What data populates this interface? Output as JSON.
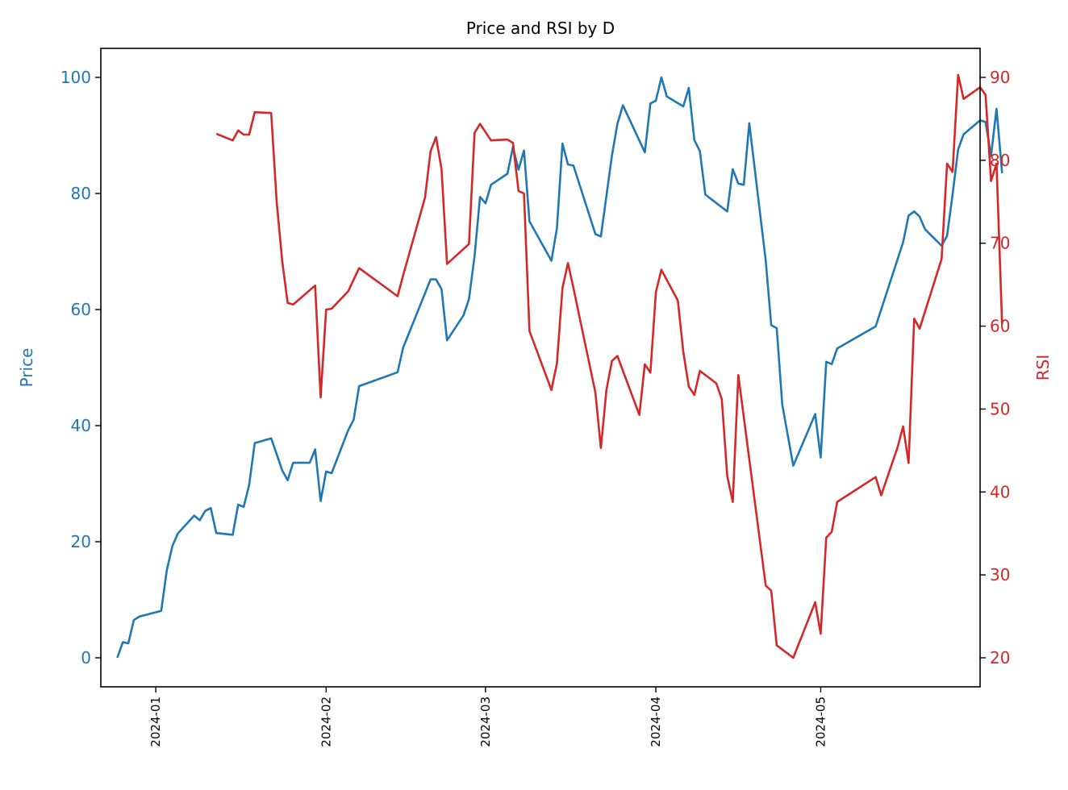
{
  "chart_data": {
    "type": "line",
    "title": "Price and RSI by D",
    "xlabel": "",
    "x_ticks": [
      "2024-01",
      "2024-02",
      "2024-03",
      "2024-04",
      "2024-05"
    ],
    "xlim": [
      "2023-12-22",
      "2024-05-30"
    ],
    "grid": false,
    "y_left": {
      "label": "Price",
      "color": "#1f77b4",
      "lim": [
        -5,
        105
      ],
      "ticks": [
        0,
        20,
        40,
        60,
        80,
        100
      ]
    },
    "y_right": {
      "label": "RSI",
      "color": "#d62728",
      "lim": [
        16.5,
        93.5
      ],
      "ticks": [
        20,
        30,
        40,
        50,
        60,
        70,
        80,
        90
      ]
    },
    "series": [
      {
        "name": "Price",
        "axis": "left",
        "color": "#1f77b4",
        "points": [
          [
            "2023-12-25",
            0.0
          ],
          [
            "2023-12-26",
            2.7
          ],
          [
            "2023-12-27",
            2.5
          ],
          [
            "2023-12-28",
            6.5
          ],
          [
            "2023-12-29",
            7.1
          ],
          [
            "2024-01-02",
            8.1
          ],
          [
            "2024-01-03",
            15.1
          ],
          [
            "2024-01-04",
            19.2
          ],
          [
            "2024-01-05",
            21.4
          ],
          [
            "2024-01-08",
            24.5
          ],
          [
            "2024-01-09",
            23.7
          ],
          [
            "2024-01-10",
            25.3
          ],
          [
            "2024-01-11",
            25.8
          ],
          [
            "2024-01-12",
            21.5
          ],
          [
            "2024-01-15",
            21.2
          ],
          [
            "2024-01-16",
            26.4
          ],
          [
            "2024-01-17",
            26.0
          ],
          [
            "2024-01-18",
            29.8
          ],
          [
            "2024-01-19",
            37.0
          ],
          [
            "2024-01-22",
            37.8
          ],
          [
            "2024-01-23",
            35.1
          ],
          [
            "2024-01-24",
            32.3
          ],
          [
            "2024-01-25",
            30.6
          ],
          [
            "2024-01-26",
            33.6
          ],
          [
            "2024-01-29",
            33.6
          ],
          [
            "2024-01-30",
            35.9
          ],
          [
            "2024-01-31",
            27.0
          ],
          [
            "2024-02-01",
            32.1
          ],
          [
            "2024-02-02",
            31.8
          ],
          [
            "2024-02-05",
            39.2
          ],
          [
            "2024-02-06",
            41.0
          ],
          [
            "2024-02-07",
            46.8
          ],
          [
            "2024-02-14",
            49.2
          ],
          [
            "2024-02-15",
            53.4
          ],
          [
            "2024-02-20",
            65.2
          ],
          [
            "2024-02-21",
            65.2
          ],
          [
            "2024-02-22",
            63.5
          ],
          [
            "2024-02-23",
            54.7
          ],
          [
            "2024-02-26",
            59.0
          ],
          [
            "2024-02-27",
            61.8
          ],
          [
            "2024-02-28",
            69.2
          ],
          [
            "2024-02-29",
            79.4
          ],
          [
            "2024-03-01",
            78.3
          ],
          [
            "2024-03-02",
            81.5
          ],
          [
            "2024-03-05",
            83.4
          ],
          [
            "2024-03-06",
            88.0
          ],
          [
            "2024-03-07",
            84.1
          ],
          [
            "2024-03-08",
            87.4
          ],
          [
            "2024-03-09",
            75.2
          ],
          [
            "2024-03-13",
            68.4
          ],
          [
            "2024-03-14",
            74.0
          ],
          [
            "2024-03-15",
            88.6
          ],
          [
            "2024-03-16",
            85.0
          ],
          [
            "2024-03-17",
            84.8
          ],
          [
            "2024-03-21",
            73.0
          ],
          [
            "2024-03-22",
            72.6
          ],
          [
            "2024-03-24",
            86.5
          ],
          [
            "2024-03-25",
            92.0
          ],
          [
            "2024-03-26",
            95.2
          ],
          [
            "2024-03-30",
            87.1
          ],
          [
            "2024-03-31",
            95.5
          ],
          [
            "2024-04-01",
            96.0
          ],
          [
            "2024-04-02",
            100.0
          ],
          [
            "2024-04-03",
            96.7
          ],
          [
            "2024-04-06",
            95.0
          ],
          [
            "2024-04-07",
            98.2
          ],
          [
            "2024-04-08",
            89.2
          ],
          [
            "2024-04-09",
            87.3
          ],
          [
            "2024-04-10",
            79.8
          ],
          [
            "2024-04-14",
            76.9
          ],
          [
            "2024-04-15",
            84.2
          ],
          [
            "2024-04-16",
            81.7
          ],
          [
            "2024-04-17",
            81.5
          ],
          [
            "2024-04-18",
            92.1
          ],
          [
            "2024-04-21",
            68.4
          ],
          [
            "2024-04-22",
            57.3
          ],
          [
            "2024-04-23",
            56.8
          ],
          [
            "2024-04-24",
            43.6
          ],
          [
            "2024-04-26",
            33.1
          ],
          [
            "2024-04-30",
            42.0
          ],
          [
            "2024-05-01",
            34.5
          ],
          [
            "2024-05-02",
            51.0
          ],
          [
            "2024-05-03",
            50.6
          ],
          [
            "2024-05-04",
            53.3
          ],
          [
            "2024-05-11",
            57.1
          ],
          [
            "2024-05-12",
            60.0
          ],
          [
            "2024-05-16",
            71.6
          ],
          [
            "2024-05-17",
            76.2
          ],
          [
            "2024-05-18",
            76.9
          ],
          [
            "2024-05-19",
            76.0
          ],
          [
            "2024-05-20",
            73.8
          ],
          [
            "2024-05-23",
            71.0
          ],
          [
            "2024-05-24",
            72.7
          ],
          [
            "2024-05-25",
            79.8
          ],
          [
            "2024-05-26",
            87.6
          ],
          [
            "2024-05-27",
            90.2
          ],
          [
            "2024-05-30",
            92.6
          ],
          [
            "2024-05-31",
            92.3
          ],
          [
            "2024-06-01",
            86.5
          ],
          [
            "2024-06-02",
            94.6
          ],
          [
            "2024-06-03",
            83.5
          ]
        ]
      },
      {
        "name": "RSI",
        "axis": "right",
        "color": "#d62728",
        "points": [
          [
            "2024-01-12",
            83.2
          ],
          [
            "2024-01-15",
            82.4
          ],
          [
            "2024-01-16",
            83.6
          ],
          [
            "2024-01-17",
            83.1
          ],
          [
            "2024-01-18",
            83.1
          ],
          [
            "2024-01-19",
            85.8
          ],
          [
            "2024-01-22",
            85.7
          ],
          [
            "2024-01-23",
            75.0
          ],
          [
            "2024-01-24",
            67.9
          ],
          [
            "2024-01-25",
            62.8
          ],
          [
            "2024-01-26",
            62.6
          ],
          [
            "2024-01-30",
            64.9
          ],
          [
            "2024-01-31",
            51.4
          ],
          [
            "2024-02-01",
            62.0
          ],
          [
            "2024-02-02",
            62.1
          ],
          [
            "2024-02-05",
            64.2
          ],
          [
            "2024-02-07",
            67.0
          ],
          [
            "2024-02-14",
            63.6
          ],
          [
            "2024-02-15",
            66.1
          ],
          [
            "2024-02-19",
            75.5
          ],
          [
            "2024-02-20",
            81.1
          ],
          [
            "2024-02-21",
            82.8
          ],
          [
            "2024-02-22",
            78.9
          ],
          [
            "2024-02-23",
            67.5
          ],
          [
            "2024-02-27",
            69.9
          ],
          [
            "2024-02-28",
            83.3
          ],
          [
            "2024-02-29",
            84.4
          ],
          [
            "2024-03-02",
            82.4
          ],
          [
            "2024-03-05",
            82.5
          ],
          [
            "2024-03-06",
            82.1
          ],
          [
            "2024-03-07",
            76.3
          ],
          [
            "2024-03-08",
            76.0
          ],
          [
            "2024-03-09",
            59.4
          ],
          [
            "2024-03-13",
            52.3
          ],
          [
            "2024-03-14",
            55.5
          ],
          [
            "2024-03-15",
            64.6
          ],
          [
            "2024-03-16",
            67.6
          ],
          [
            "2024-03-17",
            64.6
          ],
          [
            "2024-03-21",
            52.0
          ],
          [
            "2024-03-22",
            45.3
          ],
          [
            "2024-03-23",
            52.3
          ],
          [
            "2024-03-24",
            55.8
          ],
          [
            "2024-03-25",
            56.4
          ],
          [
            "2024-03-29",
            49.3
          ],
          [
            "2024-03-30",
            55.4
          ],
          [
            "2024-03-31",
            54.4
          ],
          [
            "2024-04-01",
            64.1
          ],
          [
            "2024-04-02",
            66.8
          ],
          [
            "2024-04-05",
            63.1
          ],
          [
            "2024-04-06",
            56.9
          ],
          [
            "2024-04-07",
            52.7
          ],
          [
            "2024-04-08",
            51.7
          ],
          [
            "2024-04-09",
            54.6
          ],
          [
            "2024-04-12",
            53.1
          ],
          [
            "2024-04-13",
            51.2
          ],
          [
            "2024-04-14",
            41.9
          ],
          [
            "2024-04-15",
            38.8
          ],
          [
            "2024-04-16",
            54.1
          ],
          [
            "2024-04-21",
            28.7
          ],
          [
            "2024-04-22",
            28.1
          ],
          [
            "2024-04-23",
            21.5
          ],
          [
            "2024-04-26",
            20.0
          ],
          [
            "2024-04-30",
            26.7
          ],
          [
            "2024-05-01",
            22.9
          ],
          [
            "2024-05-02",
            34.5
          ],
          [
            "2024-05-03",
            35.2
          ],
          [
            "2024-05-04",
            38.8
          ],
          [
            "2024-05-11",
            41.8
          ],
          [
            "2024-05-12",
            39.6
          ],
          [
            "2024-05-15",
            45.4
          ],
          [
            "2024-05-16",
            47.9
          ],
          [
            "2024-05-17",
            43.5
          ],
          [
            "2024-05-18",
            60.9
          ],
          [
            "2024-05-19",
            59.7
          ],
          [
            "2024-05-23",
            68.1
          ],
          [
            "2024-05-24",
            79.6
          ],
          [
            "2024-05-25",
            78.6
          ],
          [
            "2024-05-26",
            90.3
          ],
          [
            "2024-05-27",
            87.4
          ],
          [
            "2024-05-30",
            88.8
          ],
          [
            "2024-05-31",
            87.9
          ],
          [
            "2024-06-01",
            77.5
          ],
          [
            "2024-06-02",
            79.6
          ],
          [
            "2024-06-03",
            60.2
          ]
        ]
      }
    ]
  }
}
